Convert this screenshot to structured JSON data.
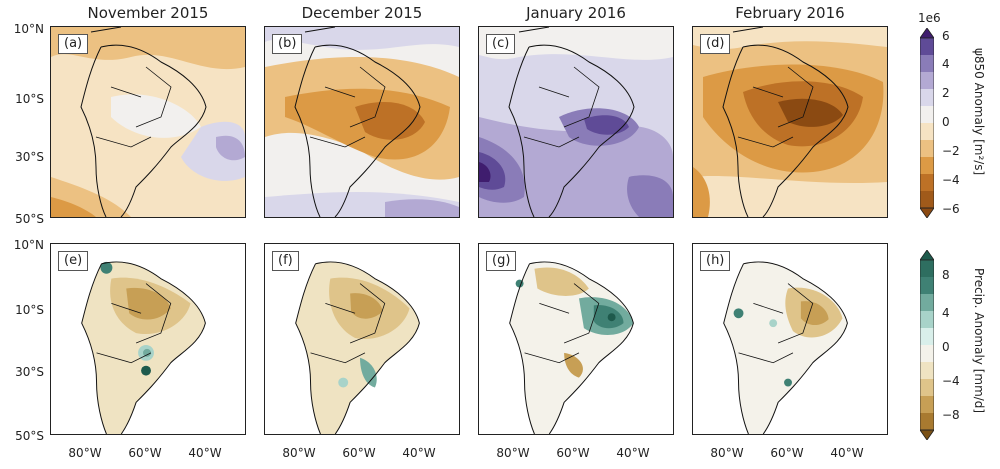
{
  "columns": [
    "November 2015",
    "December 2015",
    "January 2016",
    "February 2016"
  ],
  "top_labels": [
    "(a)",
    "(b)",
    "(c)",
    "(d)"
  ],
  "bottom_labels": [
    "(e)",
    "(f)",
    "(g)",
    "(h)"
  ],
  "y_ticks": [
    "10°N",
    "10°S",
    "30°S",
    "50°S"
  ],
  "x_ticks": [
    "80°W",
    "60°W",
    "40°W"
  ],
  "colorbar_top": {
    "exponent": "1e6",
    "label": "ψ850 Anomaly [m²/s]",
    "ticks": [
      "6",
      "4",
      "2",
      "0",
      "−2",
      "−4",
      "−6"
    ],
    "colors": [
      "#3f1d6e",
      "#5f4b97",
      "#8a7cb8",
      "#b3a9d3",
      "#d9d7ea",
      "#f2f0ee",
      "#f6e3c3",
      "#ecc182",
      "#dc9a45",
      "#bd7126",
      "#8b4a12"
    ]
  },
  "colorbar_bottom": {
    "label": "Precip. Anomaly [mm/d]",
    "ticks": [
      "8",
      "4",
      "0",
      "−4",
      "−8"
    ],
    "colors": [
      "#1e5a4c",
      "#3f8174",
      "#72ab9e",
      "#a8d3c9",
      "#d9efea",
      "#f4f2ea",
      "#efe3c2",
      "#dfc48a",
      "#c79f55",
      "#a87a30",
      "#7a5116"
    ]
  }
}
